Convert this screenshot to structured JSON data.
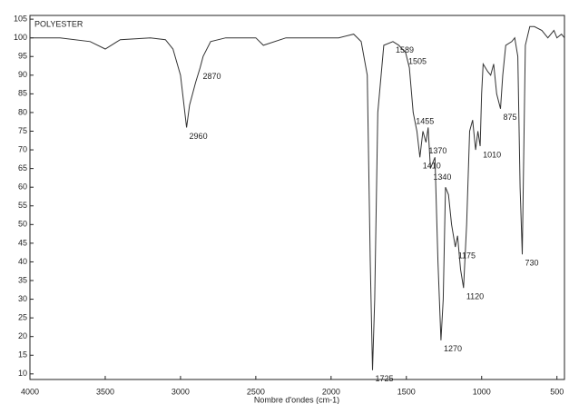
{
  "chart_data": {
    "type": "line",
    "title": "POLYESTER",
    "xlabel": "Nombre d'ondes (cm-1)",
    "x": [
      4000,
      3800,
      3600,
      3500,
      3400,
      3200,
      3100,
      3050,
      3000,
      2960,
      2940,
      2900,
      2870,
      2850,
      2800,
      2700,
      2500,
      2450,
      2300,
      2000,
      1950,
      1850,
      1800,
      1760,
      1740,
      1725,
      1710,
      1690,
      1650,
      1589,
      1550,
      1505,
      1480,
      1455,
      1430,
      1410,
      1390,
      1370,
      1355,
      1340,
      1310,
      1290,
      1270,
      1255,
      1240,
      1220,
      1200,
      1175,
      1160,
      1140,
      1120,
      1100,
      1080,
      1060,
      1040,
      1025,
      1010,
      1000,
      990,
      960,
      940,
      920,
      900,
      875,
      860,
      840,
      800,
      780,
      760,
      745,
      730,
      720,
      710,
      680,
      650,
      600,
      560,
      520,
      500,
      470,
      450
    ],
    "values": [
      100,
      100,
      99,
      97,
      99.5,
      100,
      99.5,
      97,
      90,
      76,
      82,
      88,
      92,
      95,
      99,
      100,
      100,
      98,
      100,
      100,
      100,
      101,
      99,
      90,
      40,
      11,
      30,
      80,
      98,
      99,
      98,
      96,
      92,
      80,
      75,
      68,
      75,
      72,
      76,
      65,
      68,
      40,
      19,
      30,
      60,
      58,
      50,
      44,
      47,
      38,
      33,
      50,
      75,
      78,
      70,
      75,
      71,
      85,
      93,
      91,
      90,
      93,
      85,
      81,
      90,
      98,
      99,
      100,
      95,
      60,
      42,
      70,
      98,
      103,
      103,
      102,
      100,
      102,
      100,
      101,
      100
    ],
    "color": "#333333",
    "annotations": [
      {
        "text": "2960",
        "x": 2960
      },
      {
        "text": "2870",
        "x": 2870
      },
      {
        "text": "1589",
        "x": 1589
      },
      {
        "text": "1505",
        "x": 1505
      },
      {
        "text": "1455",
        "x": 1455
      },
      {
        "text": "1410",
        "x": 1410
      },
      {
        "text": "1370",
        "x": 1370
      },
      {
        "text": "1340",
        "x": 1340
      },
      {
        "text": "1725",
        "x": 1725
      },
      {
        "text": "1270",
        "x": 1270
      },
      {
        "text": "1175",
        "x": 1175
      },
      {
        "text": "1120",
        "x": 1120
      },
      {
        "text": "1010",
        "x": 1010
      },
      {
        "text": "875",
        "x": 875
      },
      {
        "text": "730",
        "x": 730
      }
    ],
    "xlim": [
      4000,
      450
    ],
    "xticks": [
      4000,
      3500,
      3000,
      2500,
      2000,
      1500,
      1000,
      500
    ],
    "ylim": [
      8.5,
      106
    ],
    "yticks": [
      10,
      15,
      20,
      25,
      30,
      35,
      40,
      45,
      50,
      55,
      60,
      65,
      70,
      75,
      80,
      85,
      90,
      95,
      100,
      105
    ]
  }
}
